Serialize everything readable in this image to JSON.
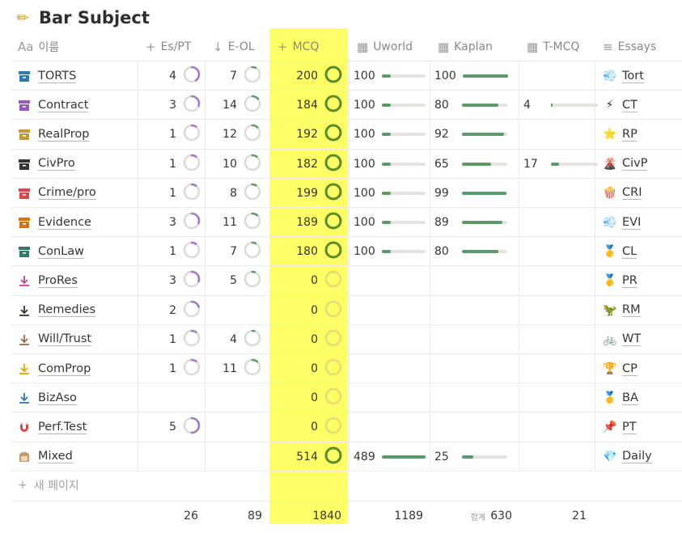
{
  "page": {
    "title": "Bar Subject",
    "icon": "pencil-icon"
  },
  "headers": [
    {
      "key": "name",
      "label": "이름",
      "icon": "Aa"
    },
    {
      "key": "espt",
      "label": "Es/PT",
      "icon": "+"
    },
    {
      "key": "eol",
      "label": "E-OL",
      "icon": "↓"
    },
    {
      "key": "mcq",
      "label": "MCQ",
      "icon": "+"
    },
    {
      "key": "uworld",
      "label": "Uworld",
      "icon": "▦"
    },
    {
      "key": "kaplan",
      "label": "Kaplan",
      "icon": "▦"
    },
    {
      "key": "tmcq",
      "label": "T-MCQ",
      "icon": "▦"
    },
    {
      "key": "essays",
      "label": "Essays",
      "icon": "≡"
    }
  ],
  "colors": {
    "mcq_highlight": "#ffff66",
    "ring_purple": "#a37bc4",
    "ring_green": "#5b9a6a",
    "ring_olive": "#5a8a2a",
    "bar_green": "#5b9a6a"
  },
  "rows": [
    {
      "name": "TORTS",
      "icon": "archive-icon",
      "icon_color": "#2e7bb4",
      "espt": "4",
      "espt_frac": 0.4,
      "eol": "7",
      "eol_frac": 0.07,
      "mcq": "200",
      "mcq_frac": 1,
      "uworld": "100",
      "uworld_frac": 0.2,
      "kaplan": "100",
      "kaplan_frac": 1,
      "tmcq": "",
      "tmcq_frac": 0,
      "emoji": "💨",
      "essay": "Tort"
    },
    {
      "name": "Contract",
      "icon": "archive-icon",
      "icon_color": "#9a5bb5",
      "espt": "3",
      "espt_frac": 0.3,
      "eol": "14",
      "eol_frac": 0.14,
      "mcq": "184",
      "mcq_frac": 1,
      "uworld": "100",
      "uworld_frac": 0.2,
      "kaplan": "80",
      "kaplan_frac": 0.8,
      "tmcq": "4",
      "tmcq_frac": 0.04,
      "emoji": "⚡",
      "essay": "CT"
    },
    {
      "name": "RealProp",
      "icon": "archive-icon",
      "icon_color": "#c49a37",
      "espt": "1",
      "espt_frac": 0.1,
      "eol": "12",
      "eol_frac": 0.12,
      "mcq": "192",
      "mcq_frac": 1,
      "uworld": "100",
      "uworld_frac": 0.2,
      "kaplan": "92",
      "kaplan_frac": 0.92,
      "tmcq": "",
      "tmcq_frac": 0,
      "emoji": "⭐",
      "essay": "RP"
    },
    {
      "name": "CivPro",
      "icon": "archive-icon",
      "icon_color": "#37352f",
      "espt": "1",
      "espt_frac": 0.1,
      "eol": "10",
      "eol_frac": 0.1,
      "mcq": "182",
      "mcq_frac": 1,
      "uworld": "100",
      "uworld_frac": 0.2,
      "kaplan": "65",
      "kaplan_frac": 0.65,
      "tmcq": "17",
      "tmcq_frac": 0.17,
      "emoji": "🌋",
      "essay": "CivP"
    },
    {
      "name": "Crime/pro",
      "icon": "archive-icon",
      "icon_color": "#d44c47",
      "espt": "1",
      "espt_frac": 0.1,
      "eol": "8",
      "eol_frac": 0.08,
      "mcq": "199",
      "mcq_frac": 1,
      "uworld": "100",
      "uworld_frac": 0.2,
      "kaplan": "99",
      "kaplan_frac": 0.99,
      "tmcq": "",
      "tmcq_frac": 0,
      "emoji": "🍿",
      "essay": "CRI"
    },
    {
      "name": "Evidence",
      "icon": "archive-icon",
      "icon_color": "#d9730d",
      "espt": "3",
      "espt_frac": 0.3,
      "eol": "11",
      "eol_frac": 0.11,
      "mcq": "189",
      "mcq_frac": 1,
      "uworld": "100",
      "uworld_frac": 0.2,
      "kaplan": "89",
      "kaplan_frac": 0.89,
      "tmcq": "",
      "tmcq_frac": 0,
      "emoji": "💨",
      "essay": "EVI"
    },
    {
      "name": "ConLaw",
      "icon": "archive-icon",
      "icon_color": "#2f7a6a",
      "espt": "1",
      "espt_frac": 0.1,
      "eol": "7",
      "eol_frac": 0.07,
      "mcq": "180",
      "mcq_frac": 1,
      "uworld": "100",
      "uworld_frac": 0.2,
      "kaplan": "80",
      "kaplan_frac": 0.8,
      "tmcq": "",
      "tmcq_frac": 0,
      "emoji": "🥇",
      "essay": "CL"
    },
    {
      "name": "ProRes",
      "icon": "download-icon",
      "icon_color": "#c14c8a",
      "espt": "3",
      "espt_frac": 0.3,
      "eol": "5",
      "eol_frac": 0.05,
      "mcq": "0",
      "mcq_frac": 0,
      "uworld": "",
      "uworld_frac": 0,
      "kaplan": "",
      "kaplan_frac": 0,
      "tmcq": "",
      "tmcq_frac": 0,
      "emoji": "🥇",
      "essay": "PR"
    },
    {
      "name": "Remedies",
      "icon": "download-icon",
      "icon_color": "#37352f",
      "espt": "2",
      "espt_frac": 0.2,
      "eol": "",
      "eol_frac": 0,
      "mcq": "0",
      "mcq_frac": 0,
      "uworld": "",
      "uworld_frac": 0,
      "kaplan": "",
      "kaplan_frac": 0,
      "tmcq": "",
      "tmcq_frac": 0,
      "emoji": "🦖",
      "essay": "RM"
    },
    {
      "name": "Will/Trust",
      "icon": "download-icon",
      "icon_color": "#9f6b53",
      "espt": "1",
      "espt_frac": 0.1,
      "eol": "4",
      "eol_frac": 0.04,
      "mcq": "0",
      "mcq_frac": 0,
      "uworld": "",
      "uworld_frac": 0,
      "kaplan": "",
      "kaplan_frac": 0,
      "tmcq": "",
      "tmcq_frac": 0,
      "emoji": "🚲",
      "essay": "WT"
    },
    {
      "name": "ComProp",
      "icon": "download-icon",
      "icon_color": "#dfab01",
      "espt": "1",
      "espt_frac": 0.1,
      "eol": "11",
      "eol_frac": 0.11,
      "mcq": "0",
      "mcq_frac": 0,
      "uworld": "",
      "uworld_frac": 0,
      "kaplan": "",
      "kaplan_frac": 0,
      "tmcq": "",
      "tmcq_frac": 0,
      "emoji": "🏆",
      "essay": "CP"
    },
    {
      "name": "BizAso",
      "icon": "download-icon",
      "icon_color": "#2e7bb4",
      "espt": "",
      "espt_frac": 0,
      "eol": "",
      "eol_frac": 0,
      "mcq": "0",
      "mcq_frac": 0,
      "uworld": "",
      "uworld_frac": 0,
      "kaplan": "",
      "kaplan_frac": 0,
      "tmcq": "",
      "tmcq_frac": 0,
      "emoji": "🥇",
      "essay": "BA"
    },
    {
      "name": "Perf.Test",
      "icon": "magnet-icon",
      "icon_color": "#d44c47",
      "espt": "5",
      "espt_frac": 0.5,
      "eol": "",
      "eol_frac": 0,
      "mcq": "0",
      "mcq_frac": 0,
      "uworld": "",
      "uworld_frac": 0,
      "kaplan": "",
      "kaplan_frac": 0,
      "tmcq": "",
      "tmcq_frac": 0,
      "emoji": "📌",
      "essay": "PT"
    },
    {
      "name": "Mixed",
      "icon": "bread-icon",
      "icon_color": "#c49a6b",
      "espt": "",
      "espt_frac": 0,
      "eol": "",
      "eol_frac": 0,
      "mcq": "514",
      "mcq_frac": 1,
      "uworld": "489",
      "uworld_frac": 1,
      "kaplan": "25",
      "kaplan_frac": 0.25,
      "tmcq": "",
      "tmcq_frac": 0,
      "emoji": "💎",
      "essay": "Daily"
    }
  ],
  "new_page_label": "새 페이지",
  "footer": {
    "espt": "26",
    "eol": "89",
    "mcq": "1840",
    "uworld": "1189",
    "kaplan_prefix": "합계",
    "kaplan": "630",
    "tmcq": "21"
  }
}
